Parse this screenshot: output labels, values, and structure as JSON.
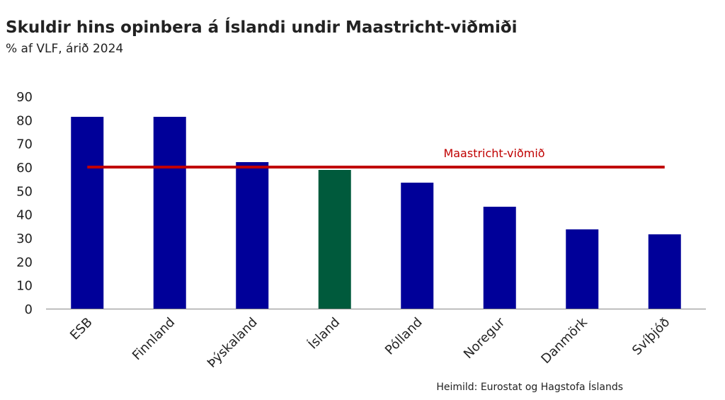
{
  "chart_data": {
    "type": "bar",
    "title": "Skuldir hins opinbera á Íslandi undir Maastricht-viðmiði",
    "subtitle": "% af VLF, árið 2024",
    "categories": [
      "ESB",
      "Finnland",
      "Þýskaland",
      "Ísland",
      "Pólland",
      "Noregur",
      "Danmörk",
      "Svíþjóð"
    ],
    "values": [
      81.3,
      81.3,
      62.1,
      58.8,
      53.4,
      43.2,
      33.6,
      31.5
    ],
    "colors": [
      "#000099",
      "#000099",
      "#000099",
      "#005a3c",
      "#000099",
      "#000099",
      "#000099",
      "#000099"
    ],
    "ylim": [
      0,
      90
    ],
    "yticks": [
      0,
      10,
      20,
      30,
      40,
      50,
      60,
      70,
      80,
      90
    ],
    "reference_line": {
      "value": 60,
      "label": "Maastricht-viðmið",
      "color": "#c00000"
    },
    "source": "Heimild: Eurostat og Hagstofa Íslands"
  }
}
